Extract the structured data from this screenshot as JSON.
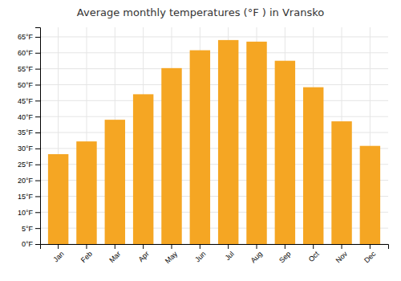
{
  "chart_data": {
    "type": "bar",
    "title": "Average monthly temperatures (°F ) in Vransko",
    "categories": [
      "Jan",
      "Feb",
      "Mar",
      "Apr",
      "May",
      "Jun",
      "Jul",
      "Aug",
      "Sep",
      "Oct",
      "Nov",
      "Dec"
    ],
    "values": [
      28.2,
      32.2,
      39.0,
      47.0,
      55.2,
      60.8,
      64.0,
      63.5,
      57.5,
      49.2,
      38.5,
      30.8
    ],
    "color": "#F5A623",
    "ylim": [
      0,
      68
    ],
    "yticks": [
      {
        "value": 0,
        "label": "0°F"
      },
      {
        "value": 5,
        "label": "5°F"
      },
      {
        "value": 10,
        "label": "10°F"
      },
      {
        "value": 15,
        "label": "15°F"
      },
      {
        "value": 20,
        "label": "20°F"
      },
      {
        "value": 25,
        "label": "25°F"
      },
      {
        "value": 30,
        "label": "30°F"
      },
      {
        "value": 35,
        "label": "35°F"
      },
      {
        "value": 40,
        "label": "40°F"
      },
      {
        "value": 45,
        "label": "45°F"
      },
      {
        "value": 50,
        "label": "50°F"
      },
      {
        "value": 55,
        "label": "55°F"
      },
      {
        "value": 60,
        "label": "60°F"
      },
      {
        "value": 65,
        "label": "65°F"
      }
    ],
    "grid": true
  }
}
